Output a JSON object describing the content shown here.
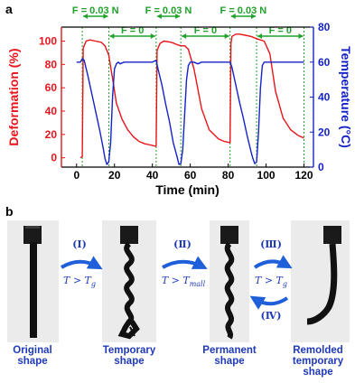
{
  "panel_a": {
    "letter": "a",
    "chart_data": {
      "type": "line",
      "xlabel": "Time (min)",
      "ylabel_left": "Deformation (%)",
      "ylabel_right": "Temperature (°C)",
      "xlim": [
        -8,
        125
      ],
      "ylim_left": [
        -8,
        112
      ],
      "ylim_right": [
        0,
        80
      ],
      "x_ticks": [
        "0",
        "20",
        "40",
        "60",
        "80",
        "100",
        "120"
      ],
      "y_left_ticks": [
        "0",
        "20",
        "40",
        "60",
        "80",
        "100"
      ],
      "y_right_ticks": [
        "0",
        "20",
        "40",
        "60",
        "80"
      ],
      "colors": {
        "deformation": "#e8141b",
        "temperature": "#1522c8",
        "phase": "#1fa12a",
        "axes": "#000000"
      },
      "phases": {
        "load_label": "F = 0.03 N",
        "unload_label": "F = 0",
        "boundaries": [
          3,
          17,
          42,
          55,
          81,
          95,
          120
        ]
      },
      "series": [
        {
          "name": "Deformation (%)",
          "x": [
            2,
            3,
            3.5,
            5,
            7,
            10,
            13,
            15,
            17,
            19,
            21,
            24,
            27,
            30,
            33,
            36,
            39,
            41.5,
            42,
            42.5,
            44,
            46,
            50,
            53,
            55,
            57,
            59,
            62,
            66,
            70,
            75,
            78,
            81,
            81.5,
            82,
            84,
            86,
            89,
            92,
            95,
            97,
            99,
            102,
            105,
            109,
            113,
            117,
            120
          ],
          "values": [
            0,
            1,
            94,
            100,
            101,
            100,
            99,
            96,
            88,
            68,
            47,
            33,
            24,
            18,
            14,
            12,
            11,
            10,
            10,
            92,
            98,
            100,
            99,
            97,
            96,
            96,
            93,
            76,
            42,
            24,
            16,
            14,
            13,
            98,
            104,
            106,
            106,
            105,
            104,
            102,
            101,
            100,
            89,
            57,
            34,
            24,
            19,
            17
          ]
        },
        {
          "name": "Temperature (°C)",
          "x": [
            0,
            2,
            3,
            4,
            6,
            8,
            10,
            12,
            14,
            15,
            16,
            17,
            18,
            19,
            20,
            21,
            22,
            23,
            25,
            27,
            29,
            31,
            35,
            40,
            42,
            43,
            45,
            47,
            49,
            51,
            53,
            54,
            55,
            56,
            57,
            58,
            59,
            60,
            61,
            62,
            64,
            66,
            70,
            75,
            80,
            81,
            82,
            84,
            86,
            88,
            90,
            92,
            93,
            94,
            95,
            96,
            97,
            98,
            99,
            100,
            101,
            103,
            105,
            110,
            115,
            120
          ],
          "values": [
            60,
            60,
            62,
            61,
            52,
            42,
            32,
            22,
            11,
            5,
            1.5,
            3,
            14,
            40,
            56,
            59,
            60,
            59,
            60,
            60,
            60,
            60,
            60,
            60,
            61,
            56,
            47,
            36,
            26,
            14,
            6,
            1.5,
            2,
            10,
            30,
            50,
            58,
            60,
            60,
            60,
            59,
            60,
            60,
            60,
            60,
            60,
            57,
            47,
            37,
            28,
            18,
            9,
            5,
            2,
            3,
            20,
            45,
            58,
            60,
            60,
            60,
            60,
            60,
            60,
            60,
            60
          ]
        }
      ]
    }
  },
  "panel_b": {
    "letter": "b",
    "stages": [
      {
        "label_line1": "Original",
        "label_line2": "shape"
      },
      {
        "label_line1": "Temporary",
        "label_line2": "shape"
      },
      {
        "label_line1": "Permanent",
        "label_line2": "shape"
      },
      {
        "label_line1": "Remolded",
        "label_line2": "temporary",
        "label_line3": "shape"
      }
    ],
    "steps": [
      {
        "numeral": "(Ⅰ)",
        "condition_main": "T > T",
        "condition_sub": "g"
      },
      {
        "numeral": "(Ⅱ)",
        "condition_main": "T > T",
        "condition_sub": "mall"
      },
      {
        "numeral": "(Ⅲ)",
        "condition_main": "T > T",
        "condition_sub": "g"
      },
      {
        "numeral": "(Ⅳ)"
      }
    ],
    "arrow_color": "#1f5fd9",
    "label_color": "#1f3ab8"
  }
}
